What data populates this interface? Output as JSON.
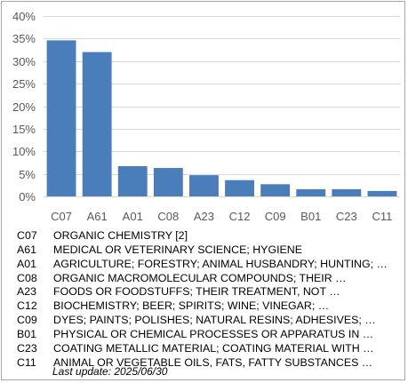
{
  "chart_data": {
    "type": "bar",
    "categories": [
      "C07",
      "A61",
      "A01",
      "C08",
      "A23",
      "C12",
      "C09",
      "B01",
      "C23",
      "C11"
    ],
    "values": [
      34.6,
      32.0,
      6.7,
      6.3,
      4.7,
      3.6,
      2.7,
      1.6,
      1.6,
      1.2
    ],
    "ylim": [
      0,
      40
    ],
    "yticks": [
      "0%",
      "5%",
      "10%",
      "15%",
      "20%",
      "25%",
      "30%",
      "35%",
      "40%"
    ],
    "ytick_values": [
      0,
      5,
      10,
      15,
      20,
      25,
      30,
      35,
      40
    ],
    "grid": true,
    "bar_color": "#4a7ebb",
    "grid_color": "#d9d9d9",
    "axis_label_color": "#595959"
  },
  "legend": [
    {
      "code": "C07",
      "desc": "ORGANIC CHEMISTRY [2]"
    },
    {
      "code": "A61",
      "desc": "MEDICAL OR VETERINARY SCIENCE; HYGIENE"
    },
    {
      "code": "A01",
      "desc": "AGRICULTURE; FORESTRY; ANIMAL HUSBANDRY; HUNTING; …"
    },
    {
      "code": "C08",
      "desc": "ORGANIC MACROMOLECULAR COMPOUNDS; THEIR …"
    },
    {
      "code": "A23",
      "desc": "FOODS OR FOODSTUFFS; THEIR TREATMENT, NOT …"
    },
    {
      "code": "C12",
      "desc": "BIOCHEMISTRY; BEER; SPIRITS; WINE; VINEGAR; …"
    },
    {
      "code": "C09",
      "desc": "DYES; PAINTS; POLISHES; NATURAL RESINS; ADHESIVES; …"
    },
    {
      "code": "B01",
      "desc": "PHYSICAL OR CHEMICAL PROCESSES OR APPARATUS IN …"
    },
    {
      "code": "C23",
      "desc": "COATING METALLIC MATERIAL; COATING MATERIAL WITH …"
    },
    {
      "code": "C11",
      "desc": "ANIMAL OR VEGETABLE OILS, FATS, FATTY SUBSTANCES …"
    }
  ],
  "footer": {
    "last_update": "Last update:  2025/06/30"
  }
}
